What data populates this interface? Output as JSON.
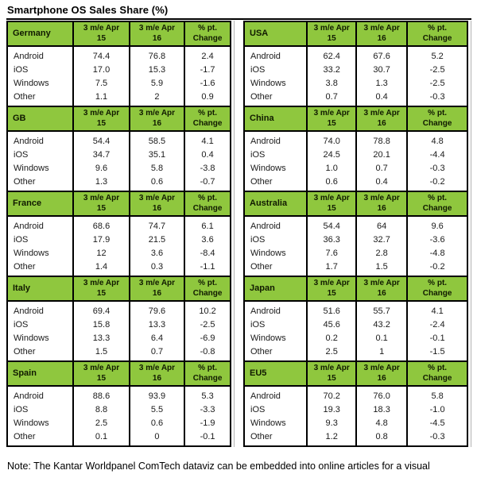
{
  "title": "Smartphone OS Sales Share (%)",
  "colors": {
    "header_green": "#8fc73e",
    "table_border": "#000000"
  },
  "col_headers": [
    "3 m/e Apr\n15",
    "3 m/e Apr\n16",
    "% pt.\nChange"
  ],
  "left_tables": [
    {
      "country": "Germany",
      "rows": [
        {
          "os": "Android",
          "apr15": "74.4",
          "apr16": "76.8",
          "change": "2.4"
        },
        {
          "os": "iOS",
          "apr15": "17.0",
          "apr16": "15.3",
          "change": "-1.7"
        },
        {
          "os": "Windows",
          "apr15": "7.5",
          "apr16": "5.9",
          "change": "-1.6"
        },
        {
          "os": "Other",
          "apr15": "1.1",
          "apr16": "2",
          "change": "0.9"
        }
      ]
    },
    {
      "country": "GB",
      "rows": [
        {
          "os": "Android",
          "apr15": "54.4",
          "apr16": "58.5",
          "change": "4.1"
        },
        {
          "os": "iOS",
          "apr15": "34.7",
          "apr16": "35.1",
          "change": "0.4"
        },
        {
          "os": "Windows",
          "apr15": "9.6",
          "apr16": "5.8",
          "change": "-3.8"
        },
        {
          "os": "Other",
          "apr15": "1.3",
          "apr16": "0.6",
          "change": "-0.7"
        }
      ]
    },
    {
      "country": "France",
      "rows": [
        {
          "os": "Android",
          "apr15": "68.6",
          "apr16": "74.7",
          "change": "6.1"
        },
        {
          "os": "iOS",
          "apr15": "17.9",
          "apr16": "21.5",
          "change": "3.6"
        },
        {
          "os": "Windows",
          "apr15": "12",
          "apr16": "3.6",
          "change": "-8.4"
        },
        {
          "os": "Other",
          "apr15": "1.4",
          "apr16": "0.3",
          "change": "-1.1"
        }
      ]
    },
    {
      "country": "Italy",
      "rows": [
        {
          "os": "Android",
          "apr15": "69.4",
          "apr16": "79.6",
          "change": "10.2"
        },
        {
          "os": "iOS",
          "apr15": "15.8",
          "apr16": "13.3",
          "change": "-2.5"
        },
        {
          "os": "Windows",
          "apr15": "13.3",
          "apr16": "6.4",
          "change": "-6.9"
        },
        {
          "os": "Other",
          "apr15": "1.5",
          "apr16": "0.7",
          "change": "-0.8"
        }
      ]
    },
    {
      "country": "Spain",
      "rows": [
        {
          "os": "Android",
          "apr15": "88.6",
          "apr16": "93.9",
          "change": "5.3"
        },
        {
          "os": "iOS",
          "apr15": "8.8",
          "apr16": "5.5",
          "change": "-3.3"
        },
        {
          "os": "Windows",
          "apr15": "2.5",
          "apr16": "0.6",
          "change": "-1.9"
        },
        {
          "os": "Other",
          "apr15": "0.1",
          "apr16": "0",
          "change": "-0.1"
        }
      ]
    }
  ],
  "right_tables": [
    {
      "country": "USA",
      "rows": [
        {
          "os": "Android",
          "apr15": "62.4",
          "apr16": "67.6",
          "change": "5.2"
        },
        {
          "os": "iOS",
          "apr15": "33.2",
          "apr16": "30.7",
          "change": "-2.5"
        },
        {
          "os": "Windows",
          "apr15": "3.8",
          "apr16": "1.3",
          "change": "-2.5"
        },
        {
          "os": "Other",
          "apr15": "0.7",
          "apr16": "0.4",
          "change": "-0.3"
        }
      ]
    },
    {
      "country": "China",
      "rows": [
        {
          "os": "Android",
          "apr15": "74.0",
          "apr16": "78.8",
          "change": "4.8"
        },
        {
          "os": "iOS",
          "apr15": "24.5",
          "apr16": "20.1",
          "change": "-4.4"
        },
        {
          "os": "Windows",
          "apr15": "1.0",
          "apr16": "0.7",
          "change": "-0.3"
        },
        {
          "os": "Other",
          "apr15": "0.6",
          "apr16": "0.4",
          "change": "-0.2"
        }
      ]
    },
    {
      "country": "Australia",
      "rows": [
        {
          "os": "Android",
          "apr15": "54.4",
          "apr16": "64",
          "change": "9.6"
        },
        {
          "os": "iOS",
          "apr15": "36.3",
          "apr16": "32.7",
          "change": "-3.6"
        },
        {
          "os": "Windows",
          "apr15": "7.6",
          "apr16": "2.8",
          "change": "-4.8"
        },
        {
          "os": "Other",
          "apr15": "1.7",
          "apr16": "1.5",
          "change": "-0.2"
        }
      ]
    },
    {
      "country": "Japan",
      "rows": [
        {
          "os": "Android",
          "apr15": "51.6",
          "apr16": "55.7",
          "change": "4.1"
        },
        {
          "os": "iOS",
          "apr15": "45.6",
          "apr16": "43.2",
          "change": "-2.4"
        },
        {
          "os": "Windows",
          "apr15": "0.2",
          "apr16": "0.1",
          "change": "-0.1"
        },
        {
          "os": "Other",
          "apr15": "2.5",
          "apr16": "1",
          "change": "-1.5"
        }
      ]
    },
    {
      "country": "EU5",
      "rows": [
        {
          "os": "Android",
          "apr15": "70.2",
          "apr16": "76.0",
          "change": "5.8"
        },
        {
          "os": "iOS",
          "apr15": "19.3",
          "apr16": "18.3",
          "change": "-1.0"
        },
        {
          "os": "Windows",
          "apr15": "9.3",
          "apr16": "4.8",
          "change": "-4.5"
        },
        {
          "os": "Other",
          "apr15": "1.2",
          "apr16": "0.8",
          "change": "-0.3"
        }
      ]
    }
  ],
  "note": "Note: The Kantar Worldpanel ComTech dataviz can be embedded into online articles for a visual"
}
